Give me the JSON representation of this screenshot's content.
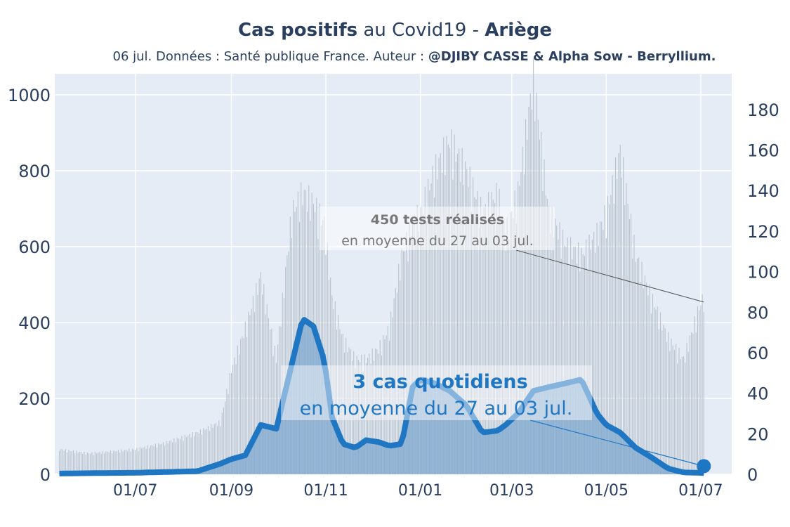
{
  "header": {
    "title_bold1": "Cas positifs",
    "title_mid": " au Covid19 - ",
    "title_bold2": "Ariège",
    "subtitle_text": "06 jul. Données : Santé publique France. Auteur : ",
    "subtitle_bold": "@DJIBY CASSE & Alpha Sow - Berryllium."
  },
  "annotations": {
    "tests_bold": "450 tests réalisés",
    "tests_sub": "en moyenne du 27 au 03 jul.",
    "cases_bold": "3 cas quotidiens",
    "cases_sub": "en moyenne du 27 au 03 jul."
  },
  "colors": {
    "plot_bg": "#e5ecf6",
    "line": "#1f77c4",
    "cases_area": "#7fa8cf",
    "tests_bars": "#b8c2cc"
  },
  "chart_data": {
    "type": "line",
    "x_ticks": [
      "01/07",
      "01/09",
      "01/11",
      "01/01",
      "01/03",
      "01/05",
      "01/07"
    ],
    "y_left_ticks": [
      "0",
      "200",
      "400",
      "600",
      "800",
      "1000"
    ],
    "y_right_ticks": [
      "0",
      "20",
      "40",
      "60",
      "80",
      "100",
      "120",
      "140",
      "160",
      "180"
    ],
    "y_left_range": [
      0,
      1000
    ],
    "y_right_range": [
      0,
      190
    ],
    "grid": true,
    "legend": "none",
    "dates": [
      "2020-05-13",
      "2020-06-01",
      "2020-07-01",
      "2020-07-20",
      "2020-08-10",
      "2020-08-25",
      "2020-09-01",
      "2020-09-10",
      "2020-09-20",
      "2020-09-30",
      "2020-10-10",
      "2020-10-17",
      "2020-10-24",
      "2020-10-31",
      "2020-11-05",
      "2020-11-12",
      "2020-11-20",
      "2020-11-27",
      "2020-12-05",
      "2020-12-12",
      "2020-12-20",
      "2020-12-27",
      "2021-01-01",
      "2021-01-10",
      "2021-01-20",
      "2021-01-31",
      "2021-02-10",
      "2021-02-20",
      "2021-02-25",
      "2021-03-05",
      "2021-03-15",
      "2021-03-25",
      "2021-04-05",
      "2021-04-15",
      "2021-04-25",
      "2021-05-01",
      "2021-05-10",
      "2021-05-20",
      "2021-05-30",
      "2021-06-10",
      "2021-06-20",
      "2021-06-30",
      "2021-07-03"
    ],
    "series": [
      {
        "role": "cases (7-day average, left axis)",
        "values": [
          2,
          3,
          4,
          6,
          8,
          28,
          40,
          50,
          130,
          120,
          290,
          410,
          390,
          300,
          150,
          80,
          70,
          90,
          85,
          75,
          80,
          230,
          250,
          240,
          220,
          180,
          110,
          115,
          130,
          160,
          220,
          230,
          240,
          250,
          160,
          130,
          110,
          70,
          45,
          15,
          5,
          4,
          3
        ]
      },
      {
        "role": "tests (daily, right axis)",
        "values": [
          12,
          10,
          12,
          15,
          20,
          25,
          50,
          70,
          95,
          55,
          125,
          135,
          130,
          120,
          85,
          65,
          55,
          55,
          60,
          70,
          105,
          120,
          125,
          145,
          160,
          145,
          125,
          135,
          115,
          135,
          190,
          125,
          110,
          105,
          115,
          125,
          155,
          105,
          85,
          65,
          55,
          80,
          85
        ]
      }
    ]
  }
}
